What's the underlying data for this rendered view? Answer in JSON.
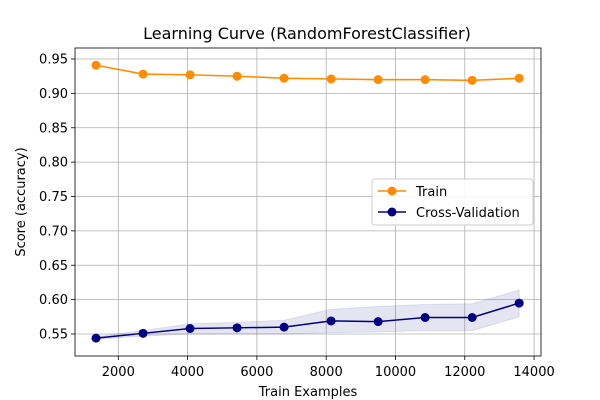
{
  "chart_data": {
    "type": "line",
    "title": "Learning Curve (RandomForestClassifier)",
    "xlabel": "Train Examples",
    "ylabel": "Score (accuracy)",
    "xlim": [
      750,
      14200
    ],
    "ylim": [
      0.518,
      0.966
    ],
    "xticks": [
      2000,
      4000,
      6000,
      8000,
      10000,
      12000,
      14000
    ],
    "xtick_labels": [
      "2000",
      "4000",
      "6000",
      "8000",
      "10000",
      "12000",
      "14000"
    ],
    "yticks": [
      0.55,
      0.6,
      0.65,
      0.7,
      0.75,
      0.8,
      0.85,
      0.9,
      0.95
    ],
    "ytick_labels": [
      "0.55",
      "0.60",
      "0.65",
      "0.70",
      "0.75",
      "0.80",
      "0.85",
      "0.90",
      "0.95"
    ],
    "grid": true,
    "legend_position": "center-right",
    "x": [
      1357,
      2714,
      4071,
      5428,
      6785,
      8142,
      9499,
      10856,
      12213,
      13570
    ],
    "series": [
      {
        "name": "Train",
        "color": "#ff8c00",
        "values": [
          0.941,
          0.928,
          0.927,
          0.925,
          0.922,
          0.921,
          0.92,
          0.92,
          0.919,
          0.922
        ],
        "band_lower": [
          0.94,
          0.927,
          0.926,
          0.924,
          0.921,
          0.92,
          0.919,
          0.919,
          0.918,
          0.921
        ],
        "band_upper": [
          0.942,
          0.929,
          0.928,
          0.926,
          0.923,
          0.922,
          0.921,
          0.921,
          0.92,
          0.923
        ]
      },
      {
        "name": "Cross-Validation",
        "color": "#000080",
        "values": [
          0.544,
          0.551,
          0.558,
          0.559,
          0.56,
          0.569,
          0.568,
          0.574,
          0.574,
          0.595
        ],
        "band_lower": [
          0.542,
          0.547,
          0.55,
          0.55,
          0.55,
          0.552,
          0.553,
          0.555,
          0.555,
          0.575
        ],
        "band_upper": [
          0.546,
          0.555,
          0.565,
          0.567,
          0.57,
          0.586,
          0.59,
          0.593,
          0.594,
          0.614
        ]
      }
    ]
  }
}
